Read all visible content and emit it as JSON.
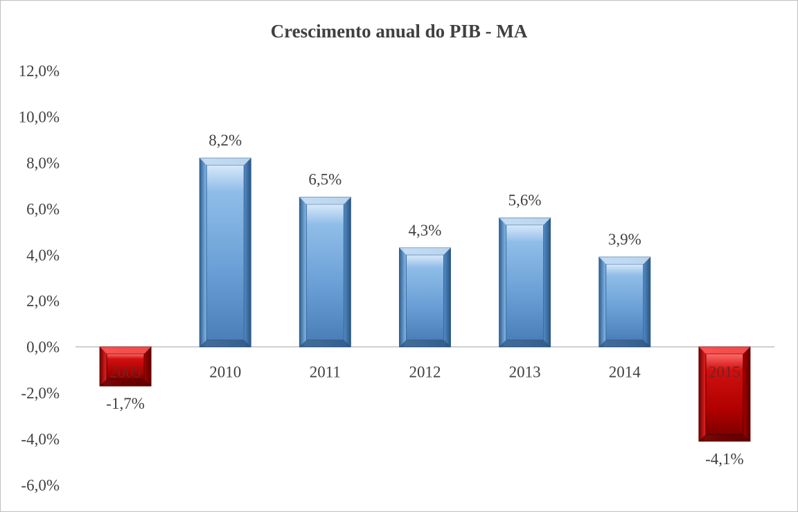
{
  "chart_data": {
    "type": "bar",
    "title": "Crescimento anual do PIB - MA",
    "xlabel": "",
    "ylabel": "",
    "categories": [
      "2009",
      "2010",
      "2011",
      "2012",
      "2013",
      "2014",
      "2015"
    ],
    "values": [
      -1.7,
      8.2,
      6.5,
      4.3,
      5.6,
      3.9,
      -4.1
    ],
    "data_labels": [
      "-1,7%",
      "8,2%",
      "6,5%",
      "4,3%",
      "5,6%",
      "3,9%",
      "-4,1%"
    ],
    "ylim": [
      -6,
      12
    ],
    "yticks": [
      12,
      10,
      8,
      6,
      4,
      2,
      0,
      -2,
      -4,
      -6
    ],
    "ytick_labels": [
      "12,0%",
      "10,0%",
      "8,0%",
      "6,0%",
      "4,0%",
      "2,0%",
      "0,0%",
      "-2,0%",
      "-4,0%",
      "-6,0%"
    ],
    "grid": false,
    "legend": "none",
    "colors": {
      "positive": "#6a9fd6",
      "positive_light": "#cfe3f7",
      "positive_dark": "#2f5f8f",
      "negative": "#c00000",
      "negative_light": "#ff5a5a",
      "negative_dark": "#6b0000",
      "text": "#404040",
      "axis": "#bfbfbf"
    }
  }
}
